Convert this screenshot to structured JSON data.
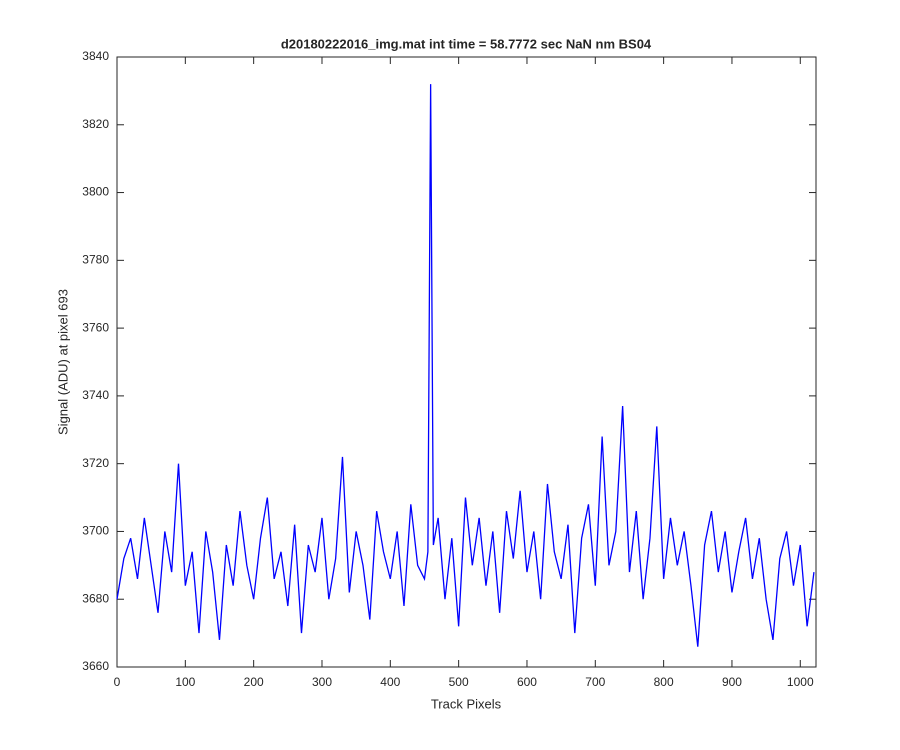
{
  "chart_data": {
    "type": "line",
    "title": "d20180222016_img.mat int time = 58.7772 sec  NaN nm BS04",
    "x_label": "Track Pixels",
    "y_label": "Signal (ADU) at pixel 693",
    "x": [
      0,
      10,
      20,
      30,
      40,
      50,
      60,
      70,
      80,
      90,
      100,
      110,
      120,
      130,
      140,
      150,
      160,
      170,
      180,
      190,
      200,
      210,
      220,
      230,
      240,
      250,
      260,
      270,
      280,
      290,
      300,
      310,
      320,
      330,
      340,
      350,
      360,
      370,
      380,
      390,
      400,
      410,
      420,
      430,
      440,
      450,
      455,
      459,
      463,
      470,
      480,
      490,
      500,
      510,
      520,
      530,
      540,
      550,
      560,
      570,
      580,
      590,
      600,
      610,
      620,
      630,
      640,
      650,
      660,
      670,
      680,
      690,
      700,
      710,
      720,
      730,
      740,
      750,
      760,
      770,
      780,
      790,
      800,
      810,
      820,
      830,
      840,
      850,
      860,
      870,
      880,
      890,
      900,
      910,
      920,
      930,
      940,
      950,
      960,
      970,
      980,
      990,
      1000,
      1010,
      1020
    ],
    "series": [
      {
        "name": "signal",
        "color": "#0000ff",
        "values": [
          3680,
          3692,
          3698,
          3686,
          3704,
          3690,
          3676,
          3700,
          3688,
          3720,
          3684,
          3694,
          3670,
          3700,
          3688,
          3668,
          3696,
          3684,
          3706,
          3690,
          3680,
          3698,
          3710,
          3686,
          3694,
          3678,
          3702,
          3670,
          3696,
          3688,
          3704,
          3680,
          3692,
          3722,
          3682,
          3700,
          3690,
          3674,
          3706,
          3694,
          3686,
          3700,
          3678,
          3708,
          3690,
          3686,
          3694,
          3832,
          3696,
          3704,
          3680,
          3698,
          3672,
          3710,
          3690,
          3704,
          3684,
          3700,
          3676,
          3706,
          3692,
          3712,
          3688,
          3700,
          3680,
          3714,
          3694,
          3686,
          3702,
          3670,
          3698,
          3708,
          3684,
          3728,
          3690,
          3700,
          3737,
          3688,
          3706,
          3680,
          3698,
          3731,
          3686,
          3704,
          3690,
          3700,
          3684,
          3666,
          3696,
          3706,
          3688,
          3700,
          3682,
          3694,
          3704,
          3686,
          3698,
          3680,
          3668,
          3692,
          3700,
          3684,
          3696,
          3672,
          3688
        ]
      }
    ],
    "xlim": [
      0,
      1023
    ],
    "ylim": [
      3660,
      3840
    ],
    "xticks": [
      0,
      100,
      200,
      300,
      400,
      500,
      600,
      700,
      800,
      900,
      1000
    ],
    "yticks": [
      3660,
      3680,
      3700,
      3720,
      3740,
      3760,
      3780,
      3800,
      3820,
      3840
    ],
    "grid": false
  }
}
